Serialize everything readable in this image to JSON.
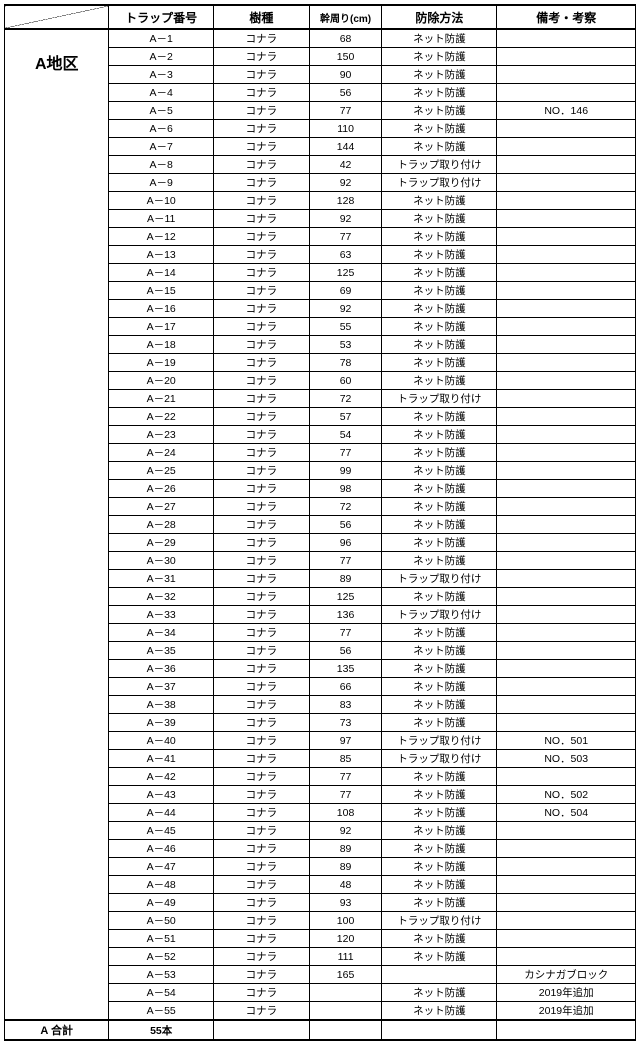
{
  "headers": {
    "trap_no": "トラップ番号",
    "species": "樹種",
    "circumference": "幹周り(cm)",
    "method": "防除方法",
    "note": "備考・考察"
  },
  "area_label": "A地区",
  "total_label": "A  合計",
  "total_count": "55本",
  "rows": [
    {
      "trap": "A－1",
      "sp": "コナラ",
      "circ": "68",
      "m": "ネット防護",
      "note": ""
    },
    {
      "trap": "A－2",
      "sp": "コナラ",
      "circ": "150",
      "m": "ネット防護",
      "note": ""
    },
    {
      "trap": "A－3",
      "sp": "コナラ",
      "circ": "90",
      "m": "ネット防護",
      "note": ""
    },
    {
      "trap": "A－4",
      "sp": "コナラ",
      "circ": "56",
      "m": "ネット防護",
      "note": ""
    },
    {
      "trap": "A－5",
      "sp": "コナラ",
      "circ": "77",
      "m": "ネット防護",
      "note": "NO．146"
    },
    {
      "trap": "A－6",
      "sp": "コナラ",
      "circ": "110",
      "m": "ネット防護",
      "note": ""
    },
    {
      "trap": "A－7",
      "sp": "コナラ",
      "circ": "144",
      "m": "ネット防護",
      "note": ""
    },
    {
      "trap": "A－8",
      "sp": "コナラ",
      "circ": "42",
      "m": "トラップ取り付け",
      "note": ""
    },
    {
      "trap": "A－9",
      "sp": "コナラ",
      "circ": "92",
      "m": "トラップ取り付け",
      "note": ""
    },
    {
      "trap": "A－10",
      "sp": "コナラ",
      "circ": "128",
      "m": "ネット防護",
      "note": ""
    },
    {
      "trap": "A－11",
      "sp": "コナラ",
      "circ": "92",
      "m": "ネット防護",
      "note": ""
    },
    {
      "trap": "A－12",
      "sp": "コナラ",
      "circ": "77",
      "m": "ネット防護",
      "note": ""
    },
    {
      "trap": "A－13",
      "sp": "コナラ",
      "circ": "63",
      "m": "ネット防護",
      "note": ""
    },
    {
      "trap": "A－14",
      "sp": "コナラ",
      "circ": "125",
      "m": "ネット防護",
      "note": ""
    },
    {
      "trap": "A－15",
      "sp": "コナラ",
      "circ": "69",
      "m": "ネット防護",
      "note": ""
    },
    {
      "trap": "A－16",
      "sp": "コナラ",
      "circ": "92",
      "m": "ネット防護",
      "note": ""
    },
    {
      "trap": "A－17",
      "sp": "コナラ",
      "circ": "55",
      "m": "ネット防護",
      "note": ""
    },
    {
      "trap": "A－18",
      "sp": "コナラ",
      "circ": "53",
      "m": "ネット防護",
      "note": ""
    },
    {
      "trap": "A－19",
      "sp": "コナラ",
      "circ": "78",
      "m": "ネット防護",
      "note": ""
    },
    {
      "trap": "A－20",
      "sp": "コナラ",
      "circ": "60",
      "m": "ネット防護",
      "note": ""
    },
    {
      "trap": "A－21",
      "sp": "コナラ",
      "circ": "72",
      "m": "トラップ取り付け",
      "note": ""
    },
    {
      "trap": "A－22",
      "sp": "コナラ",
      "circ": "57",
      "m": "ネット防護",
      "note": ""
    },
    {
      "trap": "A－23",
      "sp": "コナラ",
      "circ": "54",
      "m": "ネット防護",
      "note": ""
    },
    {
      "trap": "A－24",
      "sp": "コナラ",
      "circ": "77",
      "m": "ネット防護",
      "note": ""
    },
    {
      "trap": "A－25",
      "sp": "コナラ",
      "circ": "99",
      "m": "ネット防護",
      "note": ""
    },
    {
      "trap": "A－26",
      "sp": "コナラ",
      "circ": "98",
      "m": "ネット防護",
      "note": ""
    },
    {
      "trap": "A－27",
      "sp": "コナラ",
      "circ": "72",
      "m": "ネット防護",
      "note": ""
    },
    {
      "trap": "A－28",
      "sp": "コナラ",
      "circ": "56",
      "m": "ネット防護",
      "note": ""
    },
    {
      "trap": "A－29",
      "sp": "コナラ",
      "circ": "96",
      "m": "ネット防護",
      "note": ""
    },
    {
      "trap": "A－30",
      "sp": "コナラ",
      "circ": "77",
      "m": "ネット防護",
      "note": ""
    },
    {
      "trap": "A－31",
      "sp": "コナラ",
      "circ": "89",
      "m": "トラップ取り付け",
      "note": ""
    },
    {
      "trap": "A－32",
      "sp": "コナラ",
      "circ": "125",
      "m": "ネット防護",
      "note": ""
    },
    {
      "trap": "A－33",
      "sp": "コナラ",
      "circ": "136",
      "m": "トラップ取り付け",
      "note": ""
    },
    {
      "trap": "A－34",
      "sp": "コナラ",
      "circ": "77",
      "m": "ネット防護",
      "note": ""
    },
    {
      "trap": "A－35",
      "sp": "コナラ",
      "circ": "56",
      "m": "ネット防護",
      "note": ""
    },
    {
      "trap": "A－36",
      "sp": "コナラ",
      "circ": "135",
      "m": "ネット防護",
      "note": ""
    },
    {
      "trap": "A－37",
      "sp": "コナラ",
      "circ": "66",
      "m": "ネット防護",
      "note": ""
    },
    {
      "trap": "A－38",
      "sp": "コナラ",
      "circ": "83",
      "m": "ネット防護",
      "note": ""
    },
    {
      "trap": "A－39",
      "sp": "コナラ",
      "circ": "73",
      "m": "ネット防護",
      "note": ""
    },
    {
      "trap": "A－40",
      "sp": "コナラ",
      "circ": "97",
      "m": "トラップ取り付け",
      "note": "NO．501"
    },
    {
      "trap": "A－41",
      "sp": "コナラ",
      "circ": "85",
      "m": "トラップ取り付け",
      "note": "NO．503"
    },
    {
      "trap": "A－42",
      "sp": "コナラ",
      "circ": "77",
      "m": "ネット防護",
      "note": ""
    },
    {
      "trap": "A－43",
      "sp": "コナラ",
      "circ": "77",
      "m": "ネット防護",
      "note": "NO．502"
    },
    {
      "trap": "A－44",
      "sp": "コナラ",
      "circ": "108",
      "m": "ネット防護",
      "note": "NO．504"
    },
    {
      "trap": "A－45",
      "sp": "コナラ",
      "circ": "92",
      "m": "ネット防護",
      "note": ""
    },
    {
      "trap": "A－46",
      "sp": "コナラ",
      "circ": "89",
      "m": "ネット防護",
      "note": ""
    },
    {
      "trap": "A－47",
      "sp": "コナラ",
      "circ": "89",
      "m": "ネット防護",
      "note": ""
    },
    {
      "trap": "A－48",
      "sp": "コナラ",
      "circ": "48",
      "m": "ネット防護",
      "note": ""
    },
    {
      "trap": "A－49",
      "sp": "コナラ",
      "circ": "93",
      "m": "ネット防護",
      "note": ""
    },
    {
      "trap": "A－50",
      "sp": "コナラ",
      "circ": "100",
      "m": "トラップ取り付け",
      "note": ""
    },
    {
      "trap": "A－51",
      "sp": "コナラ",
      "circ": "120",
      "m": "ネット防護",
      "note": ""
    },
    {
      "trap": "A－52",
      "sp": "コナラ",
      "circ": "111",
      "m": "ネット防護",
      "note": ""
    },
    {
      "trap": "A－53",
      "sp": "コナラ",
      "circ": "165",
      "m": "",
      "note": "カシナガブロック"
    },
    {
      "trap": "A－54",
      "sp": "コナラ",
      "circ": "",
      "m": "ネット防護",
      "note": "2019年追加"
    },
    {
      "trap": "A－55",
      "sp": "コナラ",
      "circ": "",
      "m": "ネット防護",
      "note": "2019年追加"
    }
  ]
}
